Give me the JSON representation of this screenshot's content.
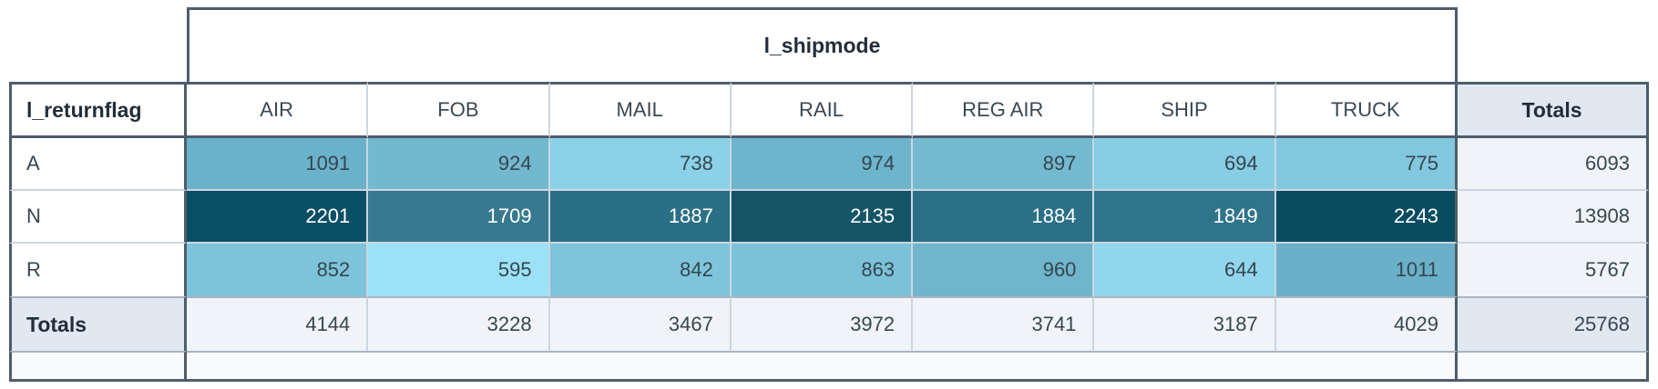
{
  "chart_data": {
    "type": "heatmap",
    "title": "",
    "column_dimension": "l_shipmode",
    "row_dimension": "l_returnflag",
    "totals_label": "Totals",
    "columns": [
      "AIR",
      "FOB",
      "MAIL",
      "RAIL",
      "REG AIR",
      "SHIP",
      "TRUCK"
    ],
    "rows": [
      "A",
      "N",
      "R"
    ],
    "values": [
      [
        1091,
        924,
        738,
        974,
        897,
        694,
        775
      ],
      [
        2201,
        1709,
        1887,
        2135,
        1884,
        1849,
        2243
      ],
      [
        852,
        595,
        842,
        863,
        960,
        644,
        1011
      ]
    ],
    "row_totals": [
      6093,
      13908,
      5767
    ],
    "column_totals": [
      4144,
      3228,
      3467,
      3972,
      3741,
      3187,
      4029
    ],
    "grand_total": 25768,
    "value_range": [
      595,
      2243
    ],
    "legend_position": "none",
    "grid": true
  },
  "pivot": {
    "cell_colors": [
      [
        "#69b2ca",
        "#72b8cf",
        "#8bd1e7",
        "#6db5cc",
        "#73b9d0",
        "#87cde3",
        "#81c8df"
      ],
      [
        "#0b4f64",
        "#37798e",
        "#2b6f85",
        "#145567",
        "#2b7086",
        "#30748a",
        "#094c60"
      ],
      [
        "#7dc4da",
        "#9ce2f6",
        "#7ec5db",
        "#7bc2d9",
        "#6fb6cd",
        "#91d6ec",
        "#69b0c8"
      ]
    ],
    "row_text_colors": [
      "#36454f",
      "#ffffff",
      "#36454f"
    ],
    "heat_scale_min_color": "#9ce2f6",
    "heat_scale_max_color": "#094c60",
    "border_dark_color": "#4e5d6c",
    "border_light_color": "#ccd6e0",
    "totals_header_bg": "#e1e8f1",
    "totals_cell_bg": "#f0f4f8",
    "footer_bg": "#f8fafc"
  }
}
